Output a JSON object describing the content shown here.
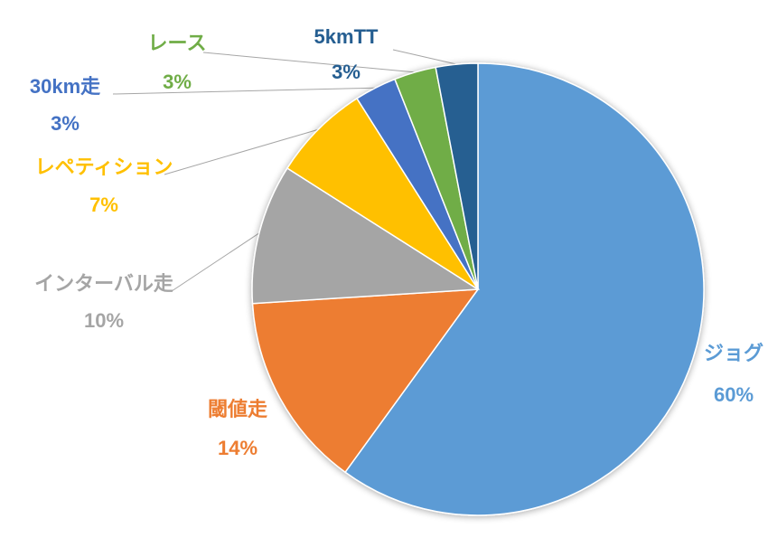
{
  "chart_data": {
    "type": "pie",
    "title": "",
    "slices": [
      {
        "label": "ジョグ",
        "value": 60,
        "percent_label": "60%",
        "color": "#5B9BD5"
      },
      {
        "label": "閾値走",
        "value": 14,
        "percent_label": "14%",
        "color": "#ED7D31"
      },
      {
        "label": "インターバル走",
        "value": 10,
        "percent_label": "10%",
        "color": "#A5A5A5"
      },
      {
        "label": "レペティション",
        "value": 7,
        "percent_label": "7%",
        "color": "#FFC000"
      },
      {
        "label": "30km走",
        "value": 3,
        "percent_label": "3%",
        "color": "#4472C4"
      },
      {
        "label": "レース",
        "value": 3,
        "percent_label": "3%",
        "color": "#70AD47"
      },
      {
        "label": "5kmTT",
        "value": 3,
        "percent_label": "3%",
        "color": "#255E91"
      }
    ],
    "start_angle": "12 o'clock",
    "direction": "clockwise",
    "legend": "none",
    "data_labels": "outside with leader lines"
  }
}
